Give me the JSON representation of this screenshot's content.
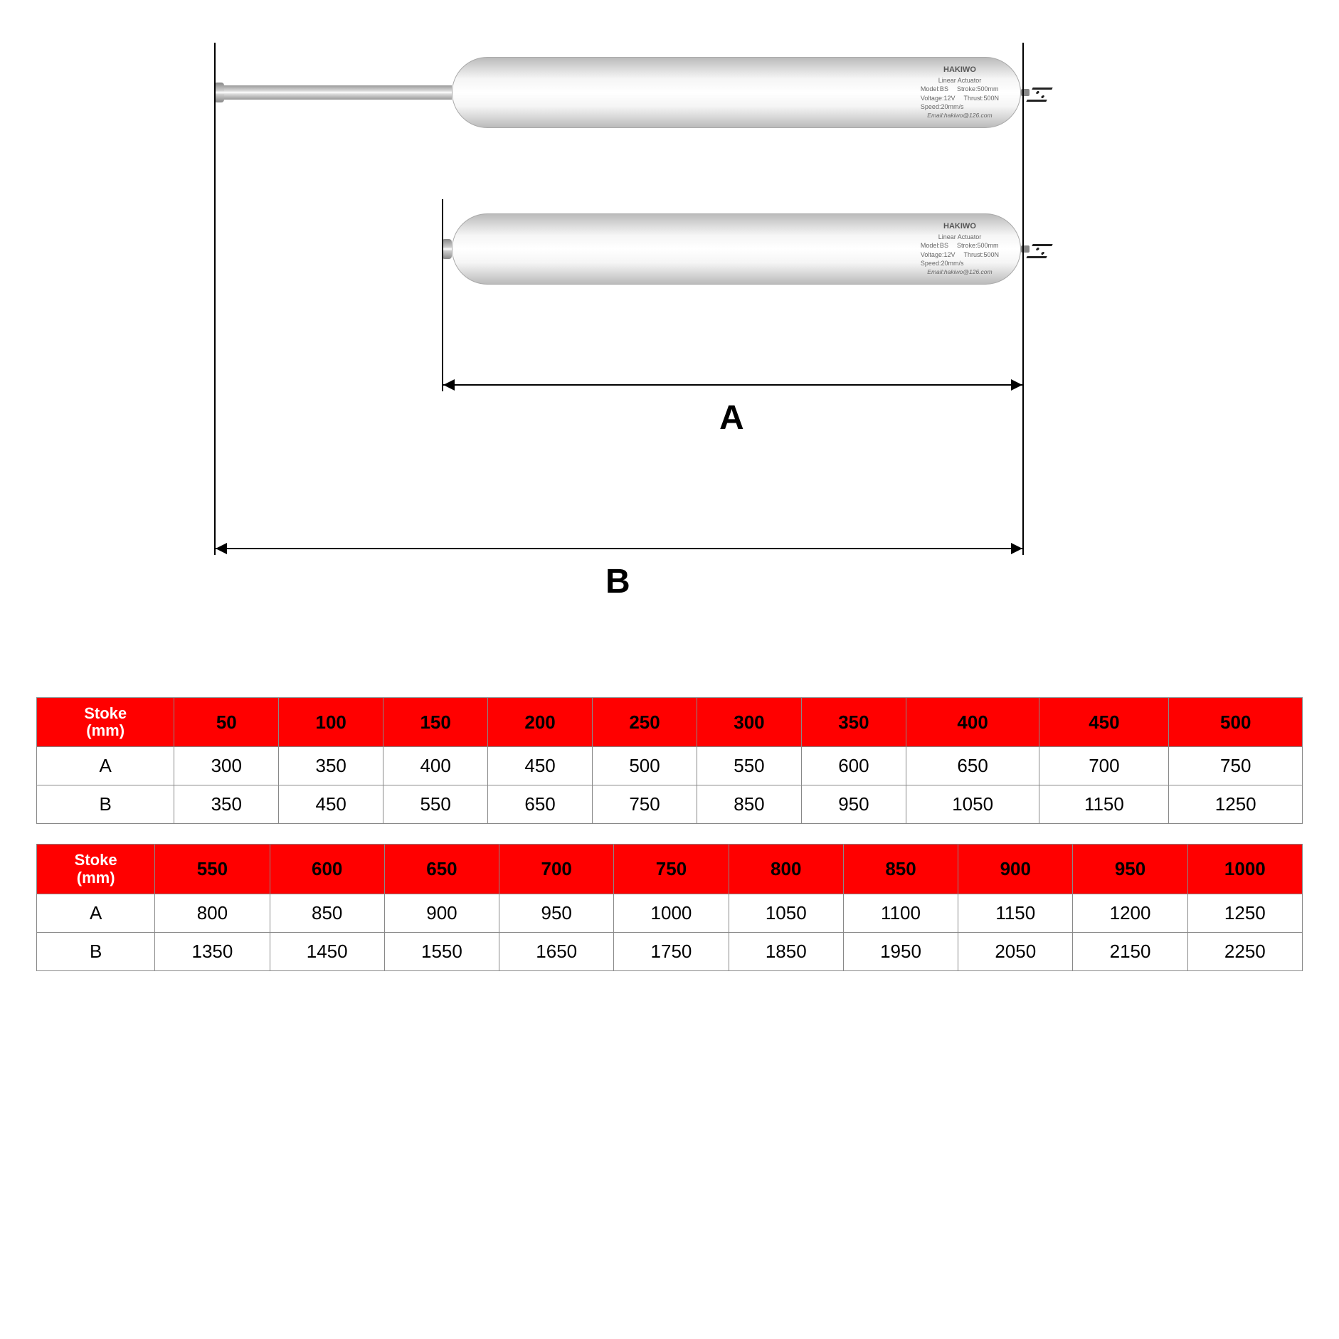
{
  "diagram": {
    "label_A": "A",
    "label_B": "B",
    "product_label": {
      "brand": "HAKIWO",
      "subtitle": "Linear Actuator",
      "model_k": "Model:BS",
      "stroke_k": "Stroke:500mm",
      "voltage_k": "Voltage:12V",
      "thrust_k": "Thrust:500N",
      "speed_k": "Speed:20mm/s",
      "email": "Email:hakiwo@126.com"
    },
    "colors": {
      "line": "#000000",
      "header_bg": "#ff0000",
      "header_text_first": "#ffffff",
      "header_text": "#000000",
      "cell_border": "#888888",
      "bg": "#ffffff"
    },
    "font": {
      "family": "Arial",
      "dim_label_size_pt": 36,
      "table_size_pt": 20
    }
  },
  "tables": [
    {
      "header_first": "Stoke\n(mm)",
      "stroke": [
        "50",
        "100",
        "150",
        "200",
        "250",
        "300",
        "350",
        "400",
        "450",
        "500"
      ],
      "rows": [
        {
          "label": "A",
          "values": [
            "300",
            "350",
            "400",
            "450",
            "500",
            "550",
            "600",
            "650",
            "700",
            "750"
          ]
        },
        {
          "label": "B",
          "values": [
            "350",
            "450",
            "550",
            "650",
            "750",
            "850",
            "950",
            "1050",
            "1150",
            "1250"
          ]
        }
      ]
    },
    {
      "header_first": "Stoke\n(mm)",
      "stroke": [
        "550",
        "600",
        "650",
        "700",
        "750",
        "800",
        "850",
        "900",
        "950",
        "1000"
      ],
      "rows": [
        {
          "label": "A",
          "values": [
            "800",
            "850",
            "900",
            "950",
            "1000",
            "1050",
            "1100",
            "1150",
            "1200",
            "1250"
          ]
        },
        {
          "label": "B",
          "values": [
            "1350",
            "1450",
            "1550",
            "1650",
            "1750",
            "1850",
            "1950",
            "2050",
            "2150",
            "2250"
          ]
        }
      ]
    }
  ]
}
